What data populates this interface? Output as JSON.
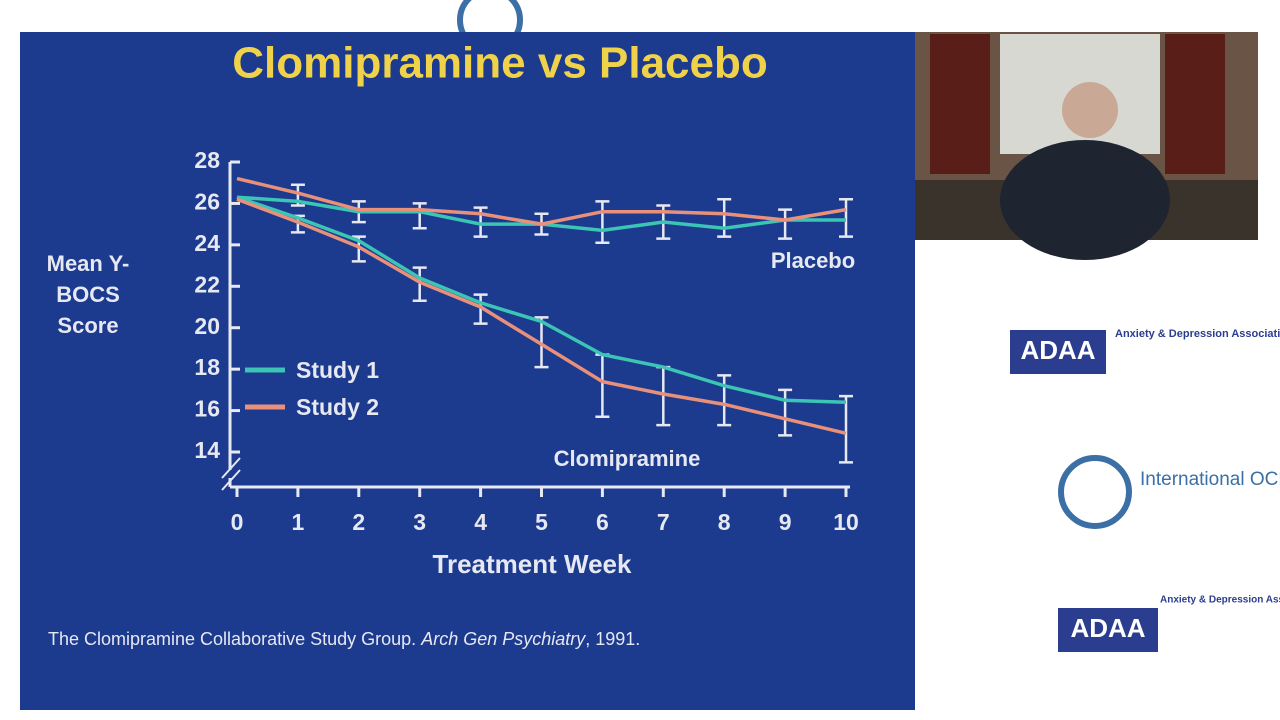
{
  "chart_data": {
    "type": "line",
    "title": "Clomipramine vs Placebo",
    "y_label": "Mean Y-BOCS Score",
    "x_label": "Treatment Week",
    "x": [
      0,
      1,
      2,
      3,
      4,
      5,
      6,
      7,
      8,
      9,
      10
    ],
    "xlim": [
      0,
      10
    ],
    "xticks": [
      0,
      1,
      2,
      3,
      4,
      5,
      6,
      7,
      8,
      9,
      10
    ],
    "ylim": [
      14,
      28
    ],
    "yticks": [
      14,
      16,
      18,
      20,
      22,
      24,
      26,
      28
    ],
    "legend": "left",
    "series": [
      {
        "name": "Study 1",
        "color": "#3cc4b4",
        "placebo": [
          26.3,
          26.1,
          25.6,
          25.6,
          25.0,
          25.0,
          24.7,
          25.1,
          24.8,
          25.2,
          25.2
        ],
        "clomipramine": [
          26.3,
          25.3,
          24.2,
          22.4,
          21.2,
          20.3,
          18.7,
          18.1,
          17.2,
          16.5,
          16.4
        ]
      },
      {
        "name": "Study 2",
        "color": "#e8907a",
        "placebo": [
          27.2,
          26.5,
          25.7,
          25.7,
          25.5,
          25.0,
          25.6,
          25.6,
          25.5,
          25.2,
          25.7
        ],
        "clomipramine": [
          26.2,
          25.1,
          23.9,
          22.2,
          21.0,
          19.2,
          17.4,
          16.8,
          16.3,
          15.6,
          14.9
        ]
      }
    ],
    "error_bars": [
      {
        "x": [
          1,
          2,
          3,
          4,
          5,
          6,
          7,
          8,
          9,
          10
        ],
        "values": [
          26.4,
          25.6,
          25.4,
          25.1,
          25.0,
          25.1,
          25.1,
          25.3,
          25.0,
          25.3
        ],
        "errors": [
          0.5,
          0.5,
          0.6,
          0.7,
          0.5,
          1.0,
          0.8,
          0.9,
          0.7,
          0.9
        ]
      },
      {
        "x": [
          1,
          2,
          3,
          4,
          5,
          6,
          7,
          8,
          9,
          10
        ],
        "values": [
          25.0,
          23.8,
          22.1,
          20.9,
          19.3,
          17.2,
          16.7,
          16.5,
          15.9,
          15.1
        ],
        "errors": [
          0.4,
          0.6,
          0.8,
          0.7,
          1.2,
          1.5,
          1.4,
          1.2,
          1.1,
          1.6
        ]
      }
    ],
    "annotations": [
      "Placebo",
      "Clomipramine"
    ],
    "source": {
      "text": "The Clomipramine Collaborative Study Group.",
      "journal": "Arch Gen Psychiatry",
      "year": ", 1991."
    }
  },
  "backdrop": {
    "adaa": "ADAA",
    "adaa_name": "Anxiety & Depression Association of America",
    "iocdf": "International OCD Foundation"
  }
}
